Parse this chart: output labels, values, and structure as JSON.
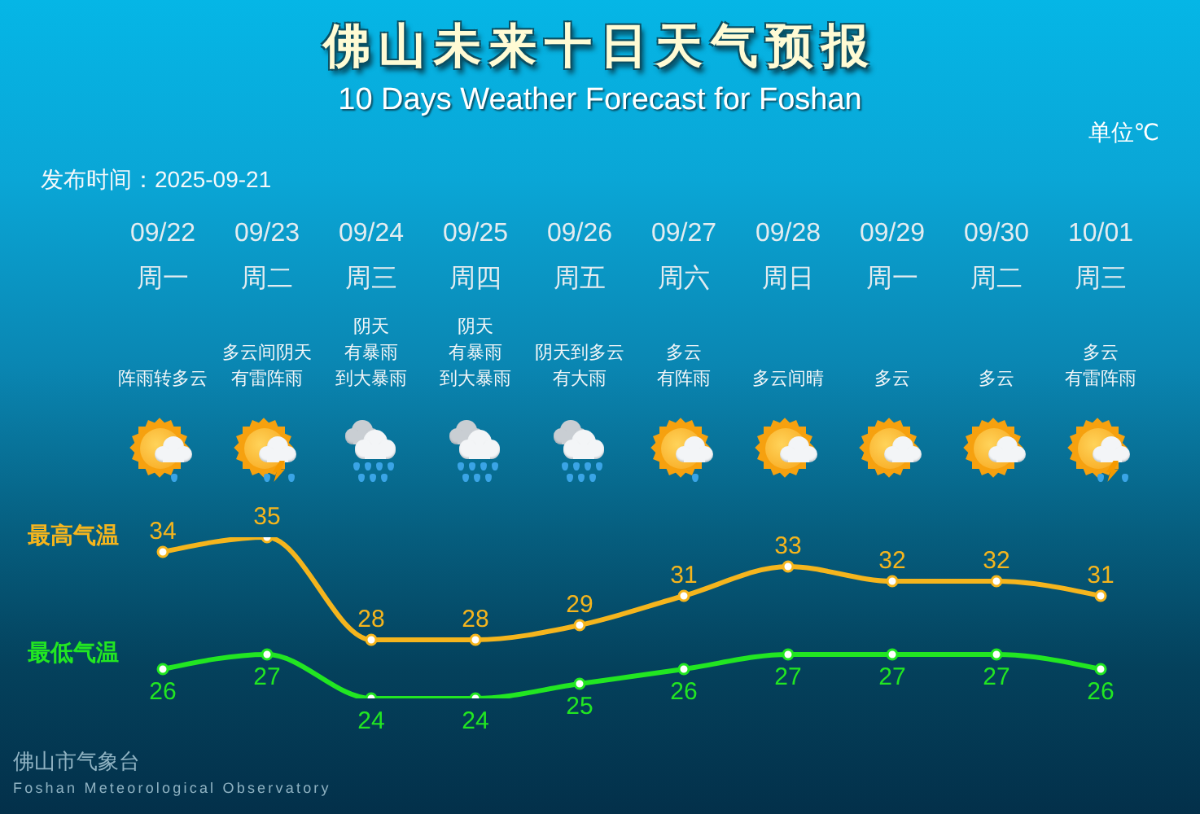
{
  "chart_data": {
    "type": "line",
    "title": "佛山未来十日天气预报",
    "subtitle": "10 Days Weather Forecast for Foshan",
    "categories": [
      "09/22",
      "09/23",
      "09/24",
      "09/25",
      "09/26",
      "09/27",
      "09/28",
      "09/29",
      "09/30",
      "10/01"
    ],
    "series": [
      {
        "name": "最高气温",
        "color": "#f5b51d",
        "values": [
          34,
          35,
          28,
          28,
          29,
          31,
          33,
          32,
          32,
          31
        ]
      },
      {
        "name": "最低气温",
        "color": "#22e622",
        "values": [
          26,
          27,
          24,
          24,
          25,
          26,
          27,
          27,
          27,
          26
        ]
      }
    ],
    "data_labels": true,
    "marker": "circle",
    "line_style": "solid",
    "annotations": [
      "单位℃",
      "发布时间：2025-09-21",
      "周一",
      "周二",
      "周三",
      "周四",
      "周五",
      "周六",
      "周日",
      "周一",
      "周二",
      "周三",
      "阵雨转多云",
      "多云间阴天有雷阵雨",
      "阴天有暴雨到大暴雨",
      "阴天有暴雨到大暴雨",
      "阴天到多云有大雨",
      "多云有阵雨",
      "多云间晴",
      "多云",
      "多云",
      "多云有雷阵雨",
      "佛山市气象台",
      "Foshan Meteorological Observatory"
    ]
  }
}
